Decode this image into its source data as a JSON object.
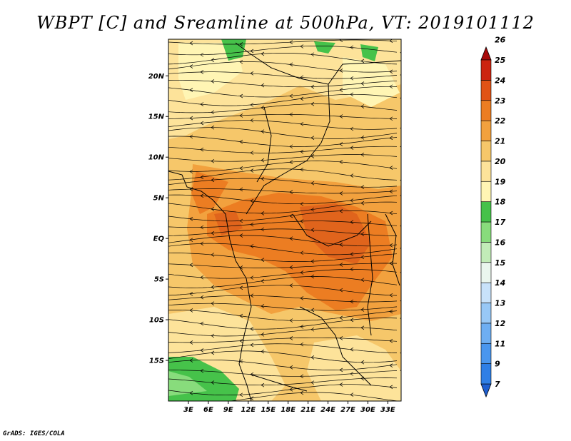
{
  "title": "WBPT [C] and Sreamline at 500hPa, VT: 2019101112",
  "credit": "GrADS: IGES/COLA",
  "map": {
    "lat_labels": [
      {
        "text": "20N",
        "lat": 20
      },
      {
        "text": "15N",
        "lat": 15
      },
      {
        "text": "10N",
        "lat": 10
      },
      {
        "text": "5N",
        "lat": 5
      },
      {
        "text": "EQ",
        "lat": 0
      },
      {
        "text": "5S",
        "lat": -5
      },
      {
        "text": "10S",
        "lat": -10
      },
      {
        "text": "15S",
        "lat": -15
      }
    ],
    "lon_labels": [
      {
        "text": "3E",
        "lon": 3
      },
      {
        "text": "6E",
        "lon": 6
      },
      {
        "text": "9E",
        "lon": 9
      },
      {
        "text": "12E",
        "lon": 12
      },
      {
        "text": "15E",
        "lon": 15
      },
      {
        "text": "18E",
        "lon": 18
      },
      {
        "text": "21E",
        "lon": 21
      },
      {
        "text": "24E",
        "lon": 24
      },
      {
        "text": "27E",
        "lon": 27
      },
      {
        "text": "30E",
        "lon": 30
      },
      {
        "text": "33E",
        "lon": 33
      }
    ],
    "lat_range": [
      -20,
      24.5
    ],
    "lon_range": [
      0,
      35
    ]
  },
  "colorbar": {
    "levels": [
      "7",
      "9",
      "11",
      "12",
      "13",
      "14",
      "15",
      "16",
      "17",
      "18",
      "19",
      "20",
      "21",
      "22",
      "23",
      "24",
      "25",
      "26"
    ],
    "colors": [
      "#1e5fd0",
      "#2f7fe6",
      "#4a96ee",
      "#6eaef2",
      "#98c8f6",
      "#c8e2fa",
      "#eaf6ee",
      "#c2ecb8",
      "#88dc7c",
      "#46c24a",
      "#fff5b4",
      "#fde39a",
      "#f6c76a",
      "#f2a13e",
      "#ec7d22",
      "#e05316",
      "#cc2410",
      "#a80a0a"
    ]
  }
}
